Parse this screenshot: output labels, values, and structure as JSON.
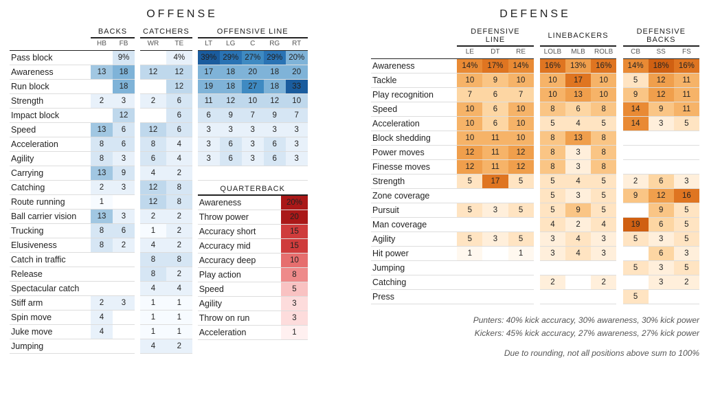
{
  "colors": {
    "blue_palette": [
      "#f7fbff",
      "#e8f1fa",
      "#d6e6f4",
      "#bfd8ec",
      "#a1c7e2",
      "#7fb3d8",
      "#5c9ecd",
      "#3f8ac2",
      "#2a73b4",
      "#1a5c9e"
    ],
    "orange_palette": [
      "#fff8ef",
      "#ffefdb",
      "#ffe4c2",
      "#fdd6a3",
      "#fac585",
      "#f6b368",
      "#f09f4c",
      "#e98a34",
      "#df7521",
      "#d06012"
    ],
    "red_palette": [
      "#fff0f0",
      "#fddcdc",
      "#f9c2c2",
      "#f4a6a6",
      "#ee8a8a",
      "#e66e6e",
      "#dc5454",
      "#cf3c3c",
      "#bf2828",
      "#aa1818"
    ],
    "grid": "#dddddd"
  },
  "offense": {
    "title": "OFFENSE",
    "groups": [
      {
        "name": "BACKS",
        "positions": [
          "HB",
          "FB"
        ]
      },
      {
        "name": "CATCHERS",
        "positions": [
          "WR",
          "TE"
        ]
      },
      {
        "name": "OFFENSIVE LINE",
        "positions": [
          "LT",
          "LG",
          "C",
          "RG",
          "RT"
        ]
      }
    ],
    "rows": [
      {
        "label": "Pass block",
        "v": [
          null,
          "9%",
          null,
          "4%",
          "39%",
          "29%",
          "27%",
          "29%",
          "20%"
        ],
        "pct": true
      },
      {
        "label": "Awareness",
        "v": [
          13,
          18,
          12,
          12,
          17,
          18,
          20,
          18,
          20
        ]
      },
      {
        "label": "Run block",
        "v": [
          null,
          18,
          null,
          12,
          19,
          18,
          27,
          18,
          33
        ]
      },
      {
        "label": "Strength",
        "v": [
          2,
          3,
          2,
          6,
          11,
          12,
          10,
          12,
          10
        ]
      },
      {
        "label": "Impact block",
        "v": [
          null,
          12,
          null,
          6,
          6,
          9,
          7,
          9,
          7
        ]
      },
      {
        "label": "Speed",
        "v": [
          13,
          6,
          12,
          6,
          3,
          3,
          3,
          3,
          3
        ]
      },
      {
        "label": "Acceleration",
        "v": [
          8,
          6,
          8,
          4,
          3,
          6,
          3,
          6,
          3
        ]
      },
      {
        "label": "Agility",
        "v": [
          8,
          3,
          6,
          4,
          3,
          6,
          3,
          6,
          3
        ]
      },
      {
        "label": "Carrying",
        "v": [
          13,
          9,
          4,
          2,
          null,
          null,
          null,
          null,
          null
        ]
      },
      {
        "label": "Catching",
        "v": [
          2,
          3,
          12,
          8,
          null,
          null,
          null,
          null,
          null
        ]
      },
      {
        "label": "Route running",
        "v": [
          1,
          null,
          12,
          8,
          null,
          null,
          null,
          null,
          null
        ]
      },
      {
        "label": "Ball carrier vision",
        "v": [
          13,
          3,
          2,
          2,
          null,
          null,
          null,
          null,
          null
        ]
      },
      {
        "label": "Trucking",
        "v": [
          8,
          6,
          1,
          2,
          null,
          null,
          null,
          null,
          null
        ]
      },
      {
        "label": "Elusiveness",
        "v": [
          8,
          2,
          4,
          2,
          null,
          null,
          null,
          null,
          null
        ]
      },
      {
        "label": "Catch in traffic",
        "v": [
          null,
          null,
          8,
          8,
          null,
          null,
          null,
          null,
          null
        ]
      },
      {
        "label": "Release",
        "v": [
          null,
          null,
          8,
          2,
          null,
          null,
          null,
          null,
          null
        ]
      },
      {
        "label": "Spectacular catch",
        "v": [
          null,
          null,
          4,
          4,
          null,
          null,
          null,
          null,
          null
        ]
      },
      {
        "label": "Stiff arm",
        "v": [
          2,
          3,
          1,
          1,
          null,
          null,
          null,
          null,
          null
        ]
      },
      {
        "label": "Spin move",
        "v": [
          4,
          null,
          1,
          1,
          null,
          null,
          null,
          null,
          null
        ]
      },
      {
        "label": "Juke move",
        "v": [
          4,
          null,
          1,
          1,
          null,
          null,
          null,
          null,
          null
        ]
      },
      {
        "label": "Jumping",
        "v": [
          null,
          null,
          4,
          2,
          null,
          null,
          null,
          null,
          null
        ]
      }
    ],
    "qb": {
      "title": "QUARTERBACK",
      "rows": [
        {
          "label": "Awareness",
          "v": "20%",
          "n": 20
        },
        {
          "label": "Throw power",
          "v": 20,
          "n": 20
        },
        {
          "label": "Accuracy short",
          "v": 15,
          "n": 15
        },
        {
          "label": "Accuracy mid",
          "v": 15,
          "n": 15
        },
        {
          "label": "Accuracy deep",
          "v": 10,
          "n": 10
        },
        {
          "label": "Play action",
          "v": 8,
          "n": 8
        },
        {
          "label": "Speed",
          "v": 5,
          "n": 5
        },
        {
          "label": "Agility",
          "v": 3,
          "n": 3
        },
        {
          "label": "Throw on run",
          "v": 3,
          "n": 3
        },
        {
          "label": "Acceleration",
          "v": 1,
          "n": 1
        }
      ]
    }
  },
  "defense": {
    "title": "DEFENSE",
    "groups": [
      {
        "name": "DEFENSIVE LINE",
        "positions": [
          "LE",
          "DT",
          "RE"
        ]
      },
      {
        "name": "LINEBACKERS",
        "positions": [
          "LOLB",
          "MLB",
          "ROLB"
        ]
      },
      {
        "name": "DEFENSIVE BACKS",
        "positions": [
          "CB",
          "SS",
          "FS"
        ]
      }
    ],
    "rows": [
      {
        "label": "Awareness",
        "v": [
          "14%",
          "17%",
          "14%",
          "16%",
          "13%",
          "16%",
          "14%",
          "18%",
          "16%"
        ],
        "pct": true
      },
      {
        "label": "Tackle",
        "v": [
          10,
          9,
          10,
          10,
          17,
          10,
          5,
          12,
          11
        ]
      },
      {
        "label": "Play recognition",
        "v": [
          7,
          6,
          7,
          10,
          13,
          10,
          9,
          12,
          11
        ]
      },
      {
        "label": "Speed",
        "v": [
          10,
          6,
          10,
          8,
          6,
          8,
          14,
          9,
          11
        ]
      },
      {
        "label": "Acceleration",
        "v": [
          10,
          6,
          10,
          5,
          4,
          5,
          14,
          3,
          5
        ]
      },
      {
        "label": "Block shedding",
        "v": [
          10,
          11,
          10,
          8,
          13,
          8,
          null,
          null,
          null
        ]
      },
      {
        "label": "Power moves",
        "v": [
          12,
          11,
          12,
          8,
          3,
          8,
          null,
          null,
          null
        ]
      },
      {
        "label": "Finesse moves",
        "v": [
          12,
          11,
          12,
          8,
          3,
          8,
          null,
          null,
          null
        ]
      },
      {
        "label": "Strength",
        "v": [
          5,
          17,
          5,
          5,
          4,
          5,
          2,
          6,
          3
        ]
      },
      {
        "label": "Zone coverage",
        "v": [
          null,
          null,
          null,
          5,
          3,
          5,
          9,
          12,
          16
        ]
      },
      {
        "label": "Pursuit",
        "v": [
          5,
          3,
          5,
          5,
          9,
          5,
          null,
          9,
          5
        ]
      },
      {
        "label": "Man coverage",
        "v": [
          null,
          null,
          null,
          4,
          2,
          4,
          19,
          6,
          5
        ]
      },
      {
        "label": "Agility",
        "v": [
          5,
          3,
          5,
          3,
          4,
          3,
          5,
          3,
          5
        ]
      },
      {
        "label": "Hit power",
        "v": [
          1,
          null,
          1,
          3,
          4,
          3,
          null,
          6,
          3
        ]
      },
      {
        "label": "Jumping",
        "v": [
          null,
          null,
          null,
          null,
          null,
          null,
          5,
          3,
          5
        ]
      },
      {
        "label": "Catching",
        "v": [
          null,
          null,
          null,
          2,
          null,
          2,
          null,
          3,
          2
        ]
      },
      {
        "label": "Press",
        "v": [
          null,
          null,
          null,
          null,
          null,
          null,
          5,
          null,
          null
        ]
      }
    ]
  },
  "footnotes": [
    "Punters: 40% kick accuracy, 30% awareness, 30% kick power",
    "Kickers: 45% kick accuracy, 27% awareness, 27% kick power",
    "Due to rounding, not all positions above sum to 100%"
  ],
  "scale": {
    "offense_max": 33,
    "defense_max": 19,
    "qb_max": 20
  }
}
